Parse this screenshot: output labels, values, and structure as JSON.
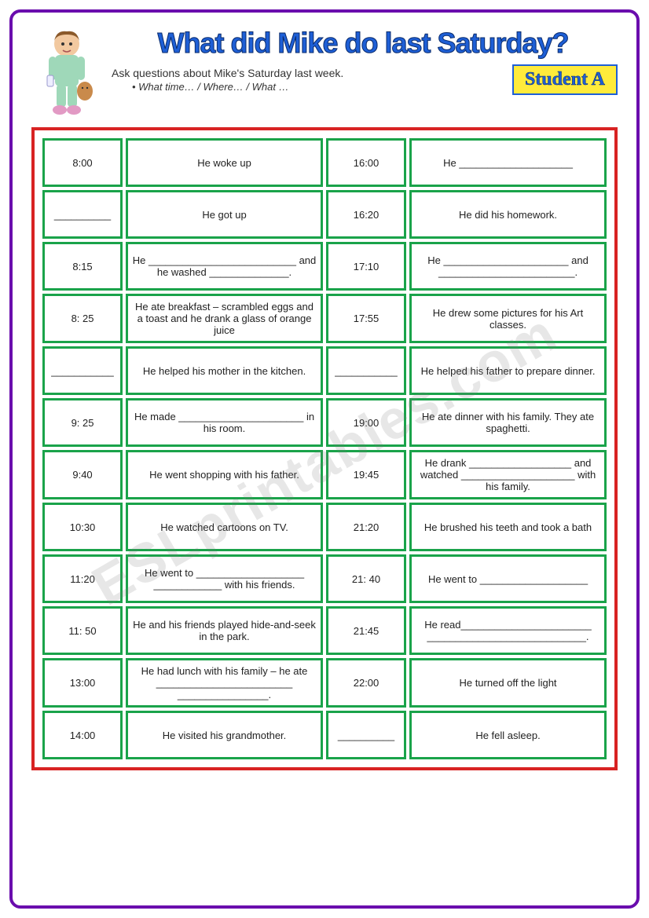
{
  "title": "What did Mike do last Saturday?",
  "instruction": "Ask questions about Mike's Saturday last week.",
  "instruction_sub": "•    What time… / Where… / What …",
  "student_label": "Student A",
  "watermark": "ESLprintables.com",
  "colors": {
    "frame": "#6a0dad",
    "title": "#1e5fd6",
    "badge_bg": "#ffeb3b",
    "outer_table": "#d82323",
    "cell_border": "#1aa34a"
  },
  "rows": [
    {
      "t1": "8:00",
      "a1": "He woke up",
      "t2": "16:00",
      "a2": "He ____________________"
    },
    {
      "t1": "__________",
      "a1": "He got up",
      "t2": "16:20",
      "a2": "He did his homework."
    },
    {
      "t1": "8:15",
      "a1": "He __________________________ and he washed ______________.",
      "t2": "17:10",
      "a2": "He ______________________ and ________________________."
    },
    {
      "t1": "8: 25",
      "a1": "He ate breakfast – scrambled eggs and a toast and he drank a glass of orange juice",
      "t2": "17:55",
      "a2": "He drew some pictures for his Art classes."
    },
    {
      "t1": "___________",
      "a1": "He helped his mother in the kitchen.",
      "t2": "___________",
      "a2": "He helped his father to prepare dinner."
    },
    {
      "t1": "9: 25",
      "a1": "He made ______________________ in his room.",
      "t2": "19:00",
      "a2": "He ate dinner with his family. They ate spaghetti."
    },
    {
      "t1": "9:40",
      "a1": "He went shopping with his father.",
      "t2": "19:45",
      "a2": "He drank __________________ and watched ____________________ with his family."
    },
    {
      "t1": "10:30",
      "a1": "He watched cartoons on TV.",
      "t2": "21:20",
      "a2": "He brushed his teeth and took a bath"
    },
    {
      "t1": "11:20",
      "a1": "He went to ___________________ ____________ with his friends.",
      "t2": "21: 40",
      "a2": "He went to ___________________"
    },
    {
      "t1": "11: 50",
      "a1": "He and his friends played hide-and-seek in the park.",
      "t2": "21:45",
      "a2": "He read_______________________ ____________________________."
    },
    {
      "t1": "13:00",
      "a1": "He had lunch with his family – he ate ________________________ ________________.",
      "t2": "22:00",
      "a2": "He turned off the light"
    },
    {
      "t1": "14:00",
      "a1": "He visited his grandmother.",
      "t2": "__________",
      "a2": "He fell asleep."
    }
  ]
}
